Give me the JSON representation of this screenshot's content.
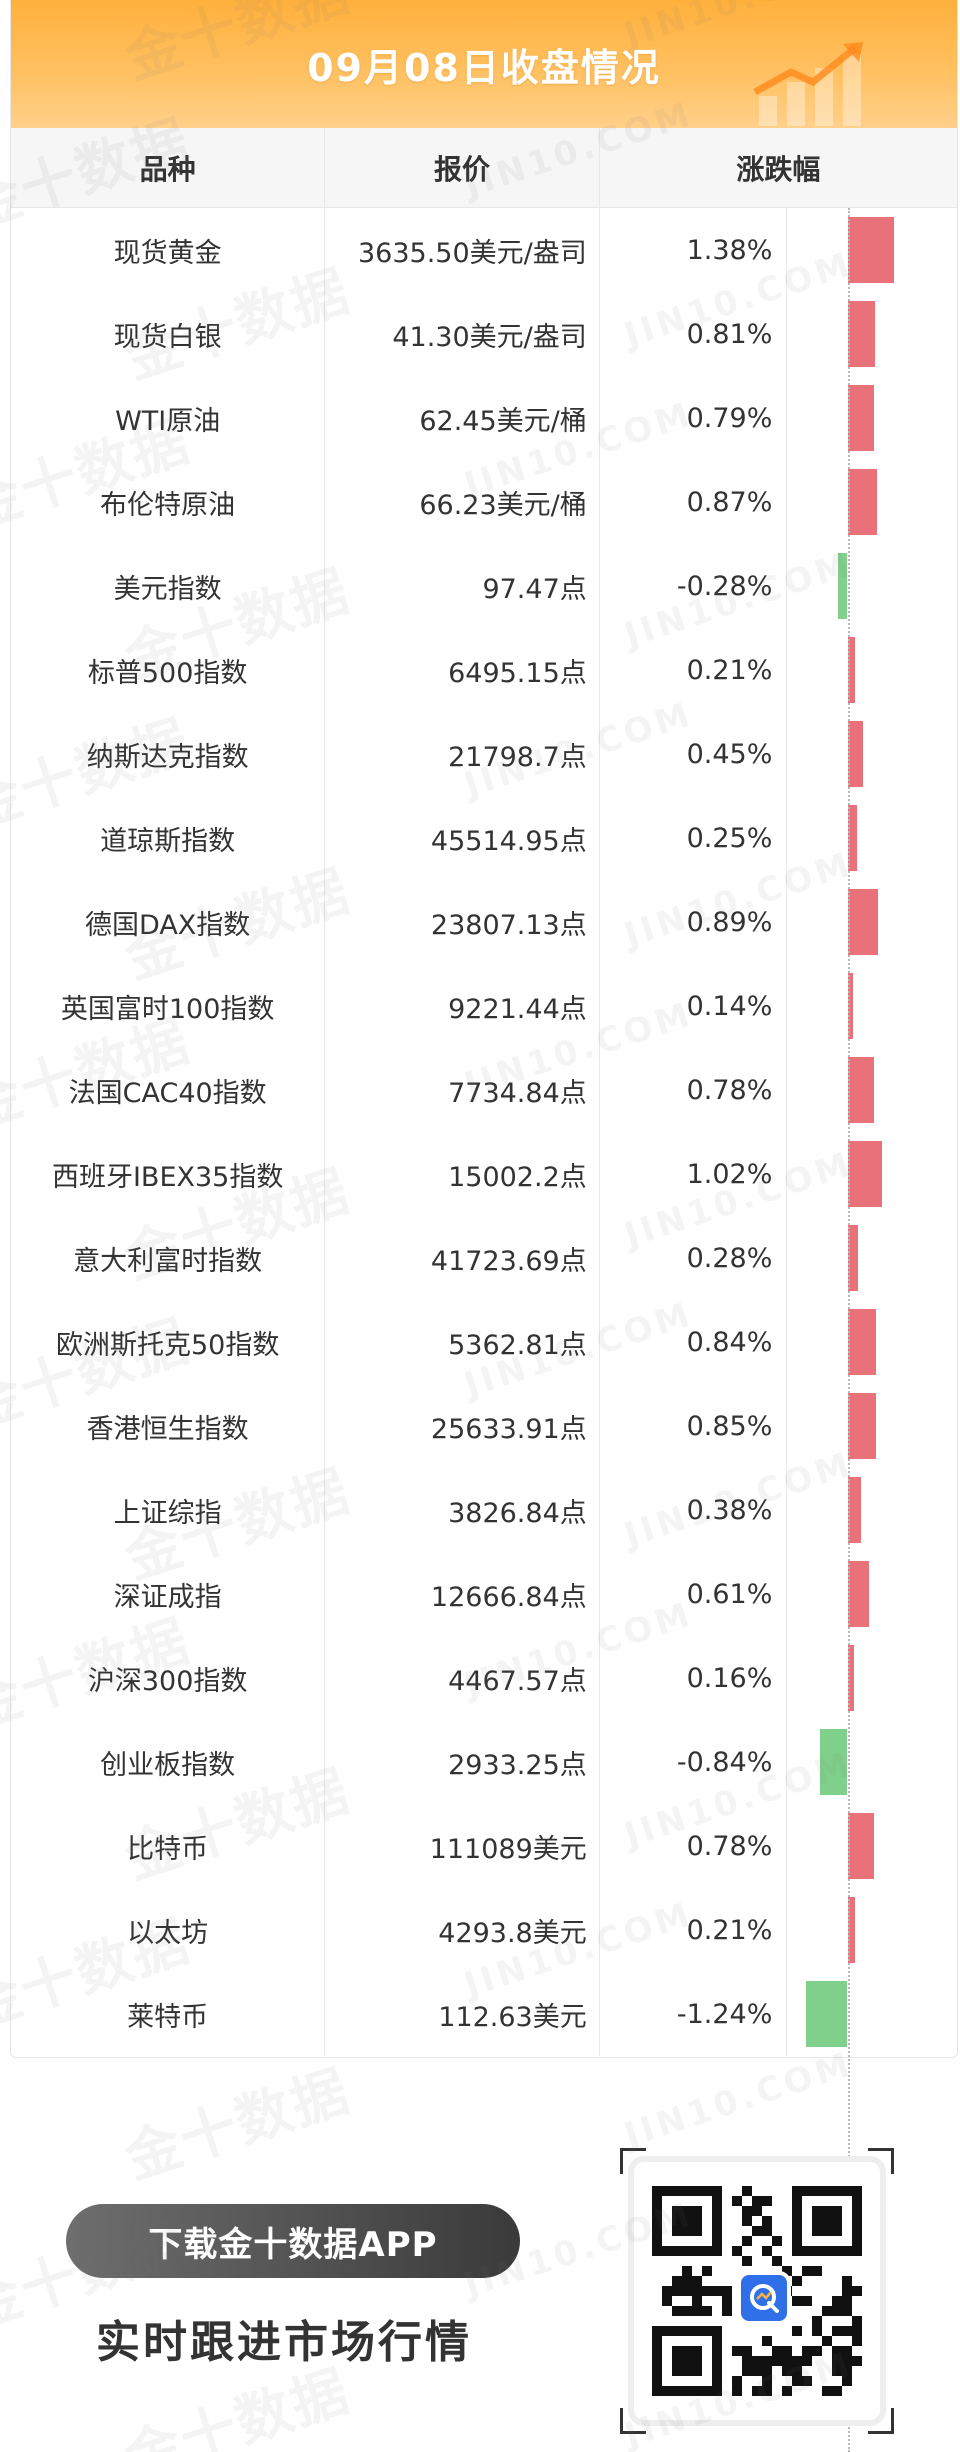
{
  "header": {
    "title": "09月08日收盘情况"
  },
  "table": {
    "columns": [
      "品种",
      "报价",
      "涨跌幅"
    ],
    "rows": [
      {
        "name": "现货黄金",
        "price": "3635.50美元/盎司",
        "change": "1.38%",
        "pct": 1.38
      },
      {
        "name": "现货白银",
        "price": "41.30美元/盎司",
        "change": "0.81%",
        "pct": 0.81
      },
      {
        "name": "WTI原油",
        "price": "62.45美元/桶",
        "change": "0.79%",
        "pct": 0.79
      },
      {
        "name": "布伦特原油",
        "price": "66.23美元/桶",
        "change": "0.87%",
        "pct": 0.87
      },
      {
        "name": "美元指数",
        "price": "97.47点",
        "change": "-0.28%",
        "pct": -0.28
      },
      {
        "name": "标普500指数",
        "price": "6495.15点",
        "change": "0.21%",
        "pct": 0.21
      },
      {
        "name": "纳斯达克指数",
        "price": "21798.7点",
        "change": "0.45%",
        "pct": 0.45
      },
      {
        "name": "道琼斯指数",
        "price": "45514.95点",
        "change": "0.25%",
        "pct": 0.25
      },
      {
        "name": "德国DAX指数",
        "price": "23807.13点",
        "change": "0.89%",
        "pct": 0.89
      },
      {
        "name": "英国富时100指数",
        "price": "9221.44点",
        "change": "0.14%",
        "pct": 0.14
      },
      {
        "name": "法国CAC40指数",
        "price": "7734.84点",
        "change": "0.78%",
        "pct": 0.78
      },
      {
        "name": "西班牙IBEX35指数",
        "price": "15002.2点",
        "change": "1.02%",
        "pct": 1.02
      },
      {
        "name": "意大利富时指数",
        "price": "41723.69点",
        "change": "0.28%",
        "pct": 0.28
      },
      {
        "name": "欧洲斯托克50指数",
        "price": "5362.81点",
        "change": "0.84%",
        "pct": 0.84
      },
      {
        "name": "香港恒生指数",
        "price": "25633.91点",
        "change": "0.85%",
        "pct": 0.85
      },
      {
        "name": "上证综指",
        "price": "3826.84点",
        "change": "0.38%",
        "pct": 0.38
      },
      {
        "name": "深证成指",
        "price": "12666.84点",
        "change": "0.61%",
        "pct": 0.61
      },
      {
        "name": "沪深300指数",
        "price": "4467.57点",
        "change": "0.16%",
        "pct": 0.16
      },
      {
        "name": "创业板指数",
        "price": "2933.25点",
        "change": "-0.84%",
        "pct": -0.84
      },
      {
        "name": "比特币",
        "price": "111089美元",
        "change": "0.78%",
        "pct": 0.78
      },
      {
        "name": "以太坊",
        "price": "4293.8美元",
        "change": "0.21%",
        "pct": 0.21
      },
      {
        "name": "莱特币",
        "price": "112.63美元",
        "change": "-1.24%",
        "pct": -1.24
      }
    ]
  },
  "colors": {
    "up": "#e8717a",
    "down": "#7fd08a",
    "header": "#ffb03c"
  },
  "watermark": {
    "cn": "金十数据",
    "en": "JIN10.COM"
  },
  "promo": {
    "button": "下载金十数据APP",
    "subtitle": "实时跟进市场行情"
  },
  "icons": {
    "header": "chart-up-icon",
    "qr": "qr-code-icon",
    "qr_logo": "jin10-logo-icon"
  }
}
